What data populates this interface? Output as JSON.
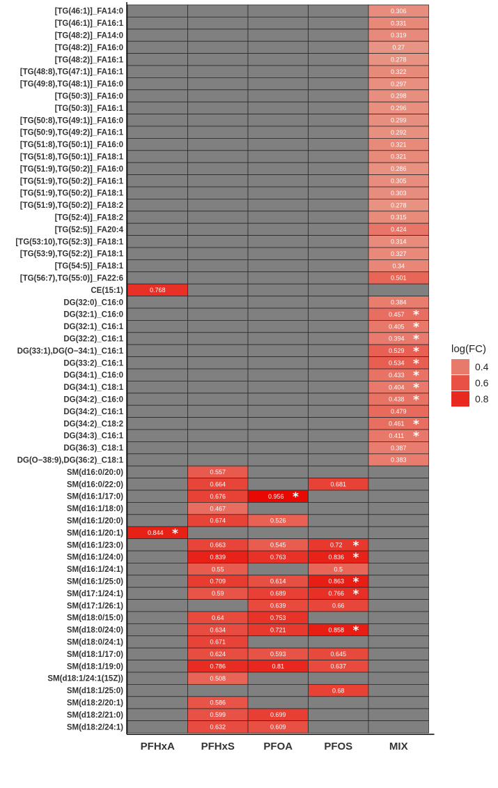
{
  "chart_data": {
    "type": "heatmap",
    "columns": [
      "PFHxA",
      "PFHxS",
      "PFOA",
      "PFOS",
      "MIX"
    ],
    "rows": [
      "[TG(46:1)]_FA14:0",
      "[TG(46:1)]_FA16:1",
      "[TG(48:2)]_FA14:0",
      "[TG(48:2)]_FA16:0",
      "[TG(48:2)]_FA16:1",
      "[TG(48:8),TG(47:1)]_FA16:1",
      "[TG(49:8),TG(48:1)]_FA16:0",
      "[TG(50:3)]_FA16:0",
      "[TG(50:3)]_FA16:1",
      "[TG(50:8),TG(49:1)]_FA16:0",
      "[TG(50:9),TG(49:2)]_FA16:1",
      "[TG(51:8),TG(50:1)]_FA16:0",
      "[TG(51:8),TG(50:1)]_FA18:1",
      "[TG(51:9),TG(50:2)]_FA16:0",
      "[TG(51:9),TG(50:2)]_FA16:1",
      "[TG(51:9),TG(50:2)]_FA18:1",
      "[TG(51:9),TG(50:2)]_FA18:2",
      "[TG(52:4)]_FA18:2",
      "[TG(52:5)]_FA20:4",
      "[TG(53:10),TG(52:3)]_FA18:1",
      "[TG(53:9),TG(52:2)]_FA18:1",
      "[TG(54:5)]_FA18:1",
      "[TG(56:7),TG(55:0)]_FA22:6",
      "CE(15:1)",
      "DG(32:0)_C16:0",
      "DG(32:1)_C16:0",
      "DG(32:1)_C16:1",
      "DG(32:2)_C16:1",
      "DG(33:1),DG(O−34:1)_C16:1",
      "DG(33:2)_C16:1",
      "DG(34:1)_C16:0",
      "DG(34:1)_C18:1",
      "DG(34:2)_C16:0",
      "DG(34:2)_C16:1",
      "DG(34:2)_C18:2",
      "DG(34:3)_C16:1",
      "DG(36:3)_C18:1",
      "DG(O−38:9),DG(36:2)_C18:1",
      "SM(d16:0/20:0)",
      "SM(d16:0/22:0)",
      "SM(d16:1/17:0)",
      "SM(d16:1/18:0)",
      "SM(d16:1/20:0)",
      "SM(d16:1/20:1)",
      "SM(d16:1/23:0)",
      "SM(d16:1/24:0)",
      "SM(d16:1/24:1)",
      "SM(d16:1/25:0)",
      "SM(d17:1/24:1)",
      "SM(d17:1/26:1)",
      "SM(d18:0/15:0)",
      "SM(d18:0/24:0)",
      "SM(d18:0/24:1)",
      "SM(d18:1/17:0)",
      "SM(d18:1/19:0)",
      "SM(d18:1/24:1(15Z))",
      "SM(d18:1/25:0)",
      "SM(d18:2/20:1)",
      "SM(d18:2/21:0)",
      "SM(d18:2/24:1)"
    ],
    "values": [
      [
        null,
        null,
        null,
        null,
        0.306
      ],
      [
        null,
        null,
        null,
        null,
        0.331
      ],
      [
        null,
        null,
        null,
        null,
        0.319
      ],
      [
        null,
        null,
        null,
        null,
        0.27
      ],
      [
        null,
        null,
        null,
        null,
        0.278
      ],
      [
        null,
        null,
        null,
        null,
        0.322
      ],
      [
        null,
        null,
        null,
        null,
        0.297
      ],
      [
        null,
        null,
        null,
        null,
        0.298
      ],
      [
        null,
        null,
        null,
        null,
        0.296
      ],
      [
        null,
        null,
        null,
        null,
        0.299
      ],
      [
        null,
        null,
        null,
        null,
        0.292
      ],
      [
        null,
        null,
        null,
        null,
        0.321
      ],
      [
        null,
        null,
        null,
        null,
        0.321
      ],
      [
        null,
        null,
        null,
        null,
        0.286
      ],
      [
        null,
        null,
        null,
        null,
        0.305
      ],
      [
        null,
        null,
        null,
        null,
        0.303
      ],
      [
        null,
        null,
        null,
        null,
        0.278
      ],
      [
        null,
        null,
        null,
        null,
        0.315
      ],
      [
        null,
        null,
        null,
        null,
        0.424
      ],
      [
        null,
        null,
        null,
        null,
        0.314
      ],
      [
        null,
        null,
        null,
        null,
        0.327
      ],
      [
        null,
        null,
        null,
        null,
        0.34
      ],
      [
        null,
        null,
        null,
        null,
        0.501
      ],
      [
        0.768,
        null,
        null,
        null,
        null
      ],
      [
        null,
        null,
        null,
        null,
        0.384
      ],
      [
        null,
        null,
        null,
        null,
        0.457
      ],
      [
        null,
        null,
        null,
        null,
        0.405
      ],
      [
        null,
        null,
        null,
        null,
        0.394
      ],
      [
        null,
        null,
        null,
        null,
        0.529
      ],
      [
        null,
        null,
        null,
        null,
        0.534
      ],
      [
        null,
        null,
        null,
        null,
        0.433
      ],
      [
        null,
        null,
        null,
        null,
        0.404
      ],
      [
        null,
        null,
        null,
        null,
        0.438
      ],
      [
        null,
        null,
        null,
        null,
        0.479
      ],
      [
        null,
        null,
        null,
        null,
        0.461
      ],
      [
        null,
        null,
        null,
        null,
        0.411
      ],
      [
        null,
        null,
        null,
        null,
        0.387
      ],
      [
        null,
        null,
        null,
        null,
        0.383
      ],
      [
        null,
        0.557,
        null,
        null,
        null
      ],
      [
        null,
        0.664,
        null,
        0.681,
        null
      ],
      [
        null,
        0.676,
        0.956,
        null,
        null
      ],
      [
        null,
        0.467,
        null,
        null,
        null
      ],
      [
        null,
        0.674,
        0.526,
        null,
        null
      ],
      [
        0.844,
        null,
        null,
        null,
        null
      ],
      [
        null,
        0.663,
        0.545,
        0.72,
        null
      ],
      [
        null,
        0.839,
        0.763,
        0.836,
        null
      ],
      [
        null,
        0.55,
        null,
        0.5,
        null
      ],
      [
        null,
        0.709,
        0.614,
        0.863,
        null
      ],
      [
        null,
        0.59,
        0.689,
        0.766,
        null
      ],
      [
        null,
        null,
        0.639,
        0.66,
        null
      ],
      [
        null,
        0.64,
        0.753,
        null,
        null
      ],
      [
        null,
        0.634,
        0.721,
        0.858,
        null
      ],
      [
        null,
        0.671,
        null,
        null,
        null
      ],
      [
        null,
        0.624,
        0.593,
        0.645,
        null
      ],
      [
        null,
        0.786,
        0.81,
        0.637,
        null
      ],
      [
        null,
        0.508,
        null,
        null,
        null
      ],
      [
        null,
        null,
        null,
        0.68,
        null
      ],
      [
        null,
        0.586,
        null,
        null,
        null
      ],
      [
        null,
        0.599,
        0.699,
        null,
        null
      ],
      [
        null,
        0.632,
        0.609,
        null,
        null
      ]
    ],
    "significant": [
      [
        25,
        4
      ],
      [
        26,
        4
      ],
      [
        27,
        4
      ],
      [
        28,
        4
      ],
      [
        29,
        4
      ],
      [
        30,
        4
      ],
      [
        31,
        4
      ],
      [
        32,
        4
      ],
      [
        34,
        4
      ],
      [
        35,
        4
      ],
      [
        40,
        2
      ],
      [
        43,
        0
      ],
      [
        44,
        3
      ],
      [
        45,
        3
      ],
      [
        47,
        3
      ],
      [
        48,
        3
      ],
      [
        51,
        3
      ]
    ],
    "significance_marker": "*",
    "missing_color": "#808080",
    "color_scale": {
      "low_value": 0.27,
      "high_value": 0.956,
      "low_color": "#e89484",
      "high_color": "#e80a02",
      "border_color": "#2a2a2a"
    },
    "legend": {
      "title": "log(FC)",
      "ticks": [
        0.4,
        0.6,
        0.8
      ],
      "placement": "right"
    },
    "grid": false
  }
}
